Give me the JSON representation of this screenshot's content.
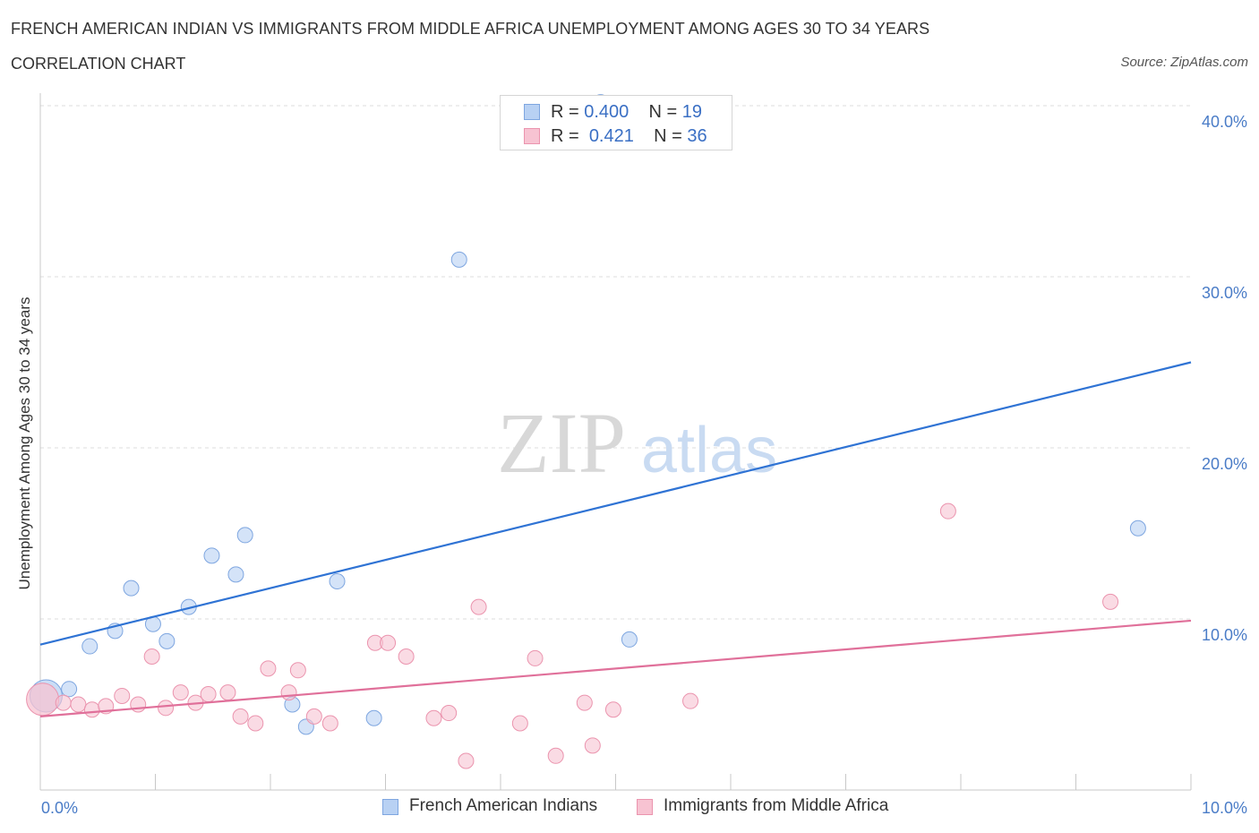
{
  "header": {
    "title": "FRENCH AMERICAN INDIAN VS IMMIGRANTS FROM MIDDLE AFRICA UNEMPLOYMENT AMONG AGES 30 TO 34 YEARS",
    "subtitle": "CORRELATION CHART",
    "source": "Source: ZipAtlas.com"
  },
  "watermark": {
    "zip": "ZIP",
    "atlas": "atlas"
  },
  "legend": {
    "series1": {
      "r_label": "R =",
      "r_value": "0.400",
      "n_label": "N =",
      "n_value": "19"
    },
    "series2": {
      "r_label": "R =",
      "r_value": "0.421",
      "n_label": "N =",
      "n_value": "36"
    }
  },
  "colors": {
    "blue_fill": "#b8d1f3",
    "blue_stroke": "#7ea6e0",
    "blue_line": "#2f73d4",
    "pink_fill": "#f7c3d2",
    "pink_stroke": "#eb94ae",
    "pink_line": "#e0709a",
    "axis_text": "#4a7cc7",
    "grid": "#dcdcdc"
  },
  "chart_data": {
    "type": "scatter",
    "title": "FRENCH AMERICAN INDIAN VS IMMIGRANTS FROM MIDDLE AFRICA UNEMPLOYMENT AMONG AGES 30 TO 34 YEARS",
    "xlabel": "",
    "ylabel": "Unemployment Among Ages 30 to 34 years",
    "xlim": [
      0,
      10
    ],
    "ylim": [
      0,
      40
    ],
    "x_tick_labels": [
      "0.0%",
      "10.0%"
    ],
    "y_ticks": [
      10,
      20,
      30,
      40
    ],
    "y_tick_labels": [
      "10.0%",
      "20.0%",
      "30.0%",
      "40.0%"
    ],
    "legend_position": "top-center",
    "series": [
      {
        "name": "French American Indians",
        "color": "blue",
        "points": [
          {
            "x": 0.05,
            "y": 5.5
          },
          {
            "x": 0.25,
            "y": 5.9
          },
          {
            "x": 0.43,
            "y": 8.4
          },
          {
            "x": 0.65,
            "y": 9.3
          },
          {
            "x": 0.79,
            "y": 11.8
          },
          {
            "x": 0.98,
            "y": 9.7
          },
          {
            "x": 1.1,
            "y": 8.7
          },
          {
            "x": 1.29,
            "y": 10.7
          },
          {
            "x": 1.49,
            "y": 13.7
          },
          {
            "x": 1.7,
            "y": 12.6
          },
          {
            "x": 1.78,
            "y": 14.9
          },
          {
            "x": 2.19,
            "y": 5.0
          },
          {
            "x": 2.31,
            "y": 3.7
          },
          {
            "x": 2.58,
            "y": 12.2
          },
          {
            "x": 2.9,
            "y": 4.2
          },
          {
            "x": 3.64,
            "y": 31.0
          },
          {
            "x": 4.87,
            "y": 40.2
          },
          {
            "x": 5.12,
            "y": 8.8
          },
          {
            "x": 9.54,
            "y": 15.3
          }
        ],
        "trend": {
          "x1": 0.0,
          "y1": 8.5,
          "x2": 10.0,
          "y2": 25.0
        }
      },
      {
        "name": "Immigrants from Middle Africa",
        "color": "pink",
        "points": [
          {
            "x": 0.02,
            "y": 5.3
          },
          {
            "x": 0.2,
            "y": 5.1
          },
          {
            "x": 0.33,
            "y": 5.0
          },
          {
            "x": 0.45,
            "y": 4.7
          },
          {
            "x": 0.57,
            "y": 4.9
          },
          {
            "x": 0.71,
            "y": 5.5
          },
          {
            "x": 0.85,
            "y": 5.0
          },
          {
            "x": 0.97,
            "y": 7.8
          },
          {
            "x": 1.09,
            "y": 4.8
          },
          {
            "x": 1.22,
            "y": 5.7
          },
          {
            "x": 1.35,
            "y": 5.1
          },
          {
            "x": 1.46,
            "y": 5.6
          },
          {
            "x": 1.63,
            "y": 5.7
          },
          {
            "x": 1.74,
            "y": 4.3
          },
          {
            "x": 1.87,
            "y": 3.9
          },
          {
            "x": 1.98,
            "y": 7.1
          },
          {
            "x": 2.16,
            "y": 5.7
          },
          {
            "x": 2.24,
            "y": 7.0
          },
          {
            "x": 2.38,
            "y": 4.3
          },
          {
            "x": 2.52,
            "y": 3.9
          },
          {
            "x": 2.91,
            "y": 8.6
          },
          {
            "x": 3.02,
            "y": 8.6
          },
          {
            "x": 3.18,
            "y": 7.8
          },
          {
            "x": 3.42,
            "y": 4.2
          },
          {
            "x": 3.55,
            "y": 4.5
          },
          {
            "x": 3.7,
            "y": 1.7
          },
          {
            "x": 3.81,
            "y": 10.7
          },
          {
            "x": 4.17,
            "y": 3.9
          },
          {
            "x": 4.3,
            "y": 7.7
          },
          {
            "x": 4.48,
            "y": 2.0
          },
          {
            "x": 4.73,
            "y": 5.1
          },
          {
            "x": 4.8,
            "y": 2.6
          },
          {
            "x": 4.98,
            "y": 4.7
          },
          {
            "x": 5.65,
            "y": 5.2
          },
          {
            "x": 7.89,
            "y": 16.3
          },
          {
            "x": 9.3,
            "y": 11.0
          }
        ],
        "trend": {
          "x1": 0.0,
          "y1": 4.3,
          "x2": 10.0,
          "y2": 9.9
        }
      }
    ]
  }
}
